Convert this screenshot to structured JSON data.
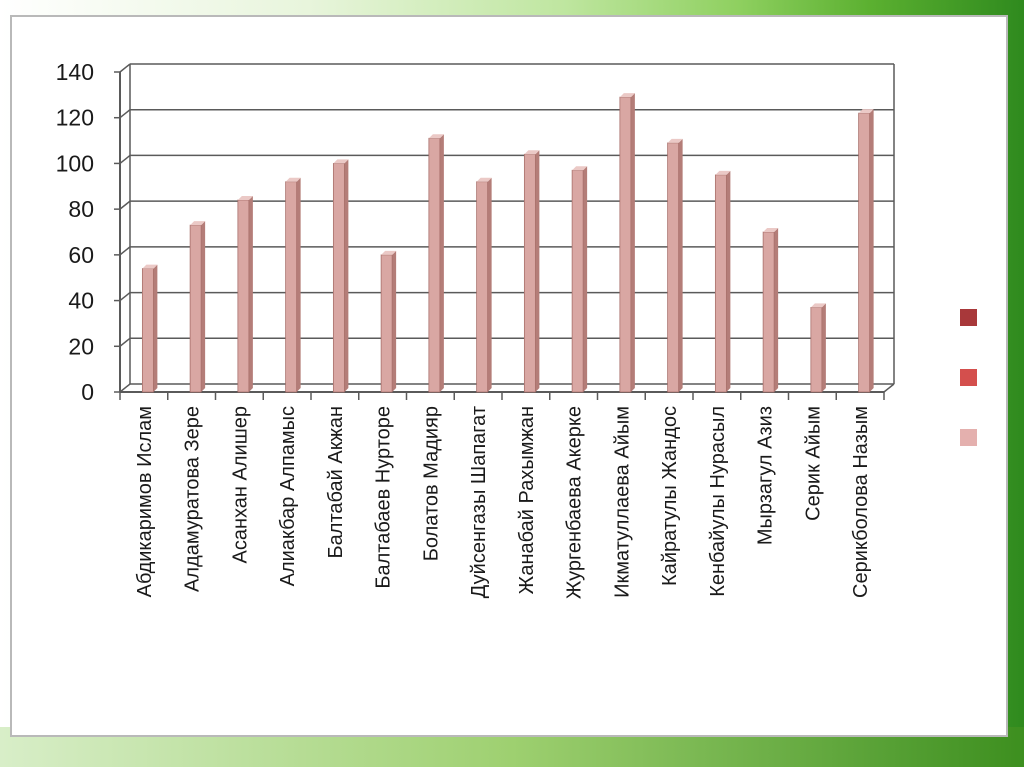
{
  "chart_data": {
    "type": "bar",
    "title": "",
    "xlabel": "",
    "ylabel": "",
    "ylim": [
      0,
      140
    ],
    "yticks": [
      0,
      20,
      40,
      60,
      80,
      100,
      120,
      140
    ],
    "grid": true,
    "legend_placement": "right",
    "categories": [
      "Абдикаримов Ислам",
      "Алдамуратова Зере",
      "Асанхан Алишер",
      "Алиакбар Алпамыс",
      "Балтабай Акжан",
      "Балтабаев Нурторе",
      "Болатов Мадияр",
      "Дуйсенгазы Шапагат",
      "Жанабай Рахымжан",
      "Жургенбаева Акерке",
      "Икматуллаева Айым",
      "Кайратулы Жандос",
      "Кенбайулы Нурасыл",
      "Мырзагул Азиз",
      "Серик Айым",
      "Серикболова Назым"
    ],
    "values": [
      54,
      73,
      84,
      92,
      100,
      60,
      111,
      92,
      104,
      97,
      129,
      109,
      95,
      70,
      37,
      122
    ],
    "colors": {
      "bar_front": "#d9a7a3",
      "bar_side": "#b47d78",
      "bar_top": "#ebc9c6",
      "legend": [
        "#a8383a",
        "#d44f4d",
        "#e4b0ae"
      ]
    }
  }
}
